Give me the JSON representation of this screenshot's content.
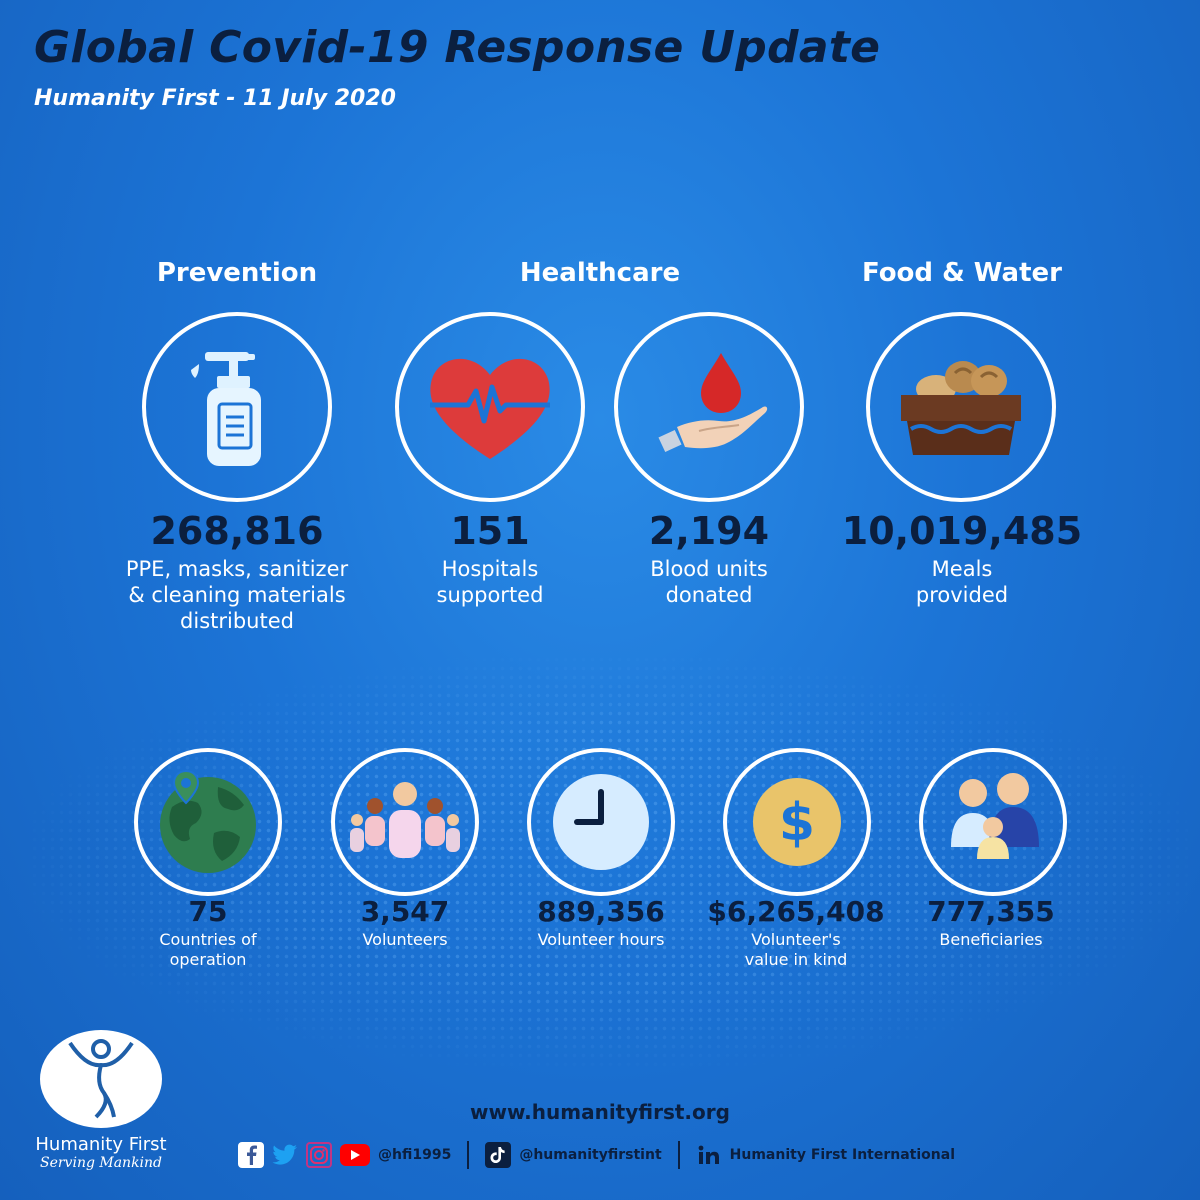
{
  "header": {
    "title": "Global Covid-19 Response Update",
    "subtitle": "Humanity First - 11 July 2020"
  },
  "categories": {
    "prevention": "Prevention",
    "healthcare": "Healthcare",
    "food_water": "Food & Water"
  },
  "primary_stats": [
    {
      "icon": "sanitizer-bottle-icon",
      "value": "268,816",
      "label": "PPE, masks, sanitizer\n& cleaning materials\ndistributed"
    },
    {
      "icon": "heart-pulse-icon",
      "value": "151",
      "label": "Hospitals\nsupported"
    },
    {
      "icon": "blood-donation-icon",
      "value": "2,194",
      "label": "Blood units\ndonated"
    },
    {
      "icon": "food-basket-icon",
      "value": "10,019,485",
      "label": "Meals\nprovided"
    }
  ],
  "secondary_stats": [
    {
      "icon": "globe-location-icon",
      "value": "75",
      "label": "Countries of\noperation"
    },
    {
      "icon": "people-group-icon",
      "value": "3,547",
      "label": "Volunteers"
    },
    {
      "icon": "clock-icon",
      "value": "889,356",
      "label": "Volunteer hours"
    },
    {
      "icon": "dollar-coin-icon",
      "value": "$6,265,408",
      "label": "Volunteer's\nvalue in kind"
    },
    {
      "icon": "family-icon",
      "value": "777,355",
      "label": "Beneficiaries"
    }
  ],
  "footer": {
    "logo_name": "Humanity First",
    "logo_tagline": "Serving Mankind",
    "url": "www.humanityfirst.org",
    "handle_main": "@hfi1995",
    "handle_tiktok": "@humanityfirstint",
    "handle_linkedin": "Humanity First International",
    "social_icons": [
      "facebook-icon",
      "twitter-icon",
      "instagram-icon",
      "youtube-icon",
      "tiktok-icon",
      "linkedin-icon"
    ]
  },
  "colors": {
    "background": "#1c74d6",
    "title_navy": "#0b1f3f",
    "text_white": "#ffffff"
  }
}
